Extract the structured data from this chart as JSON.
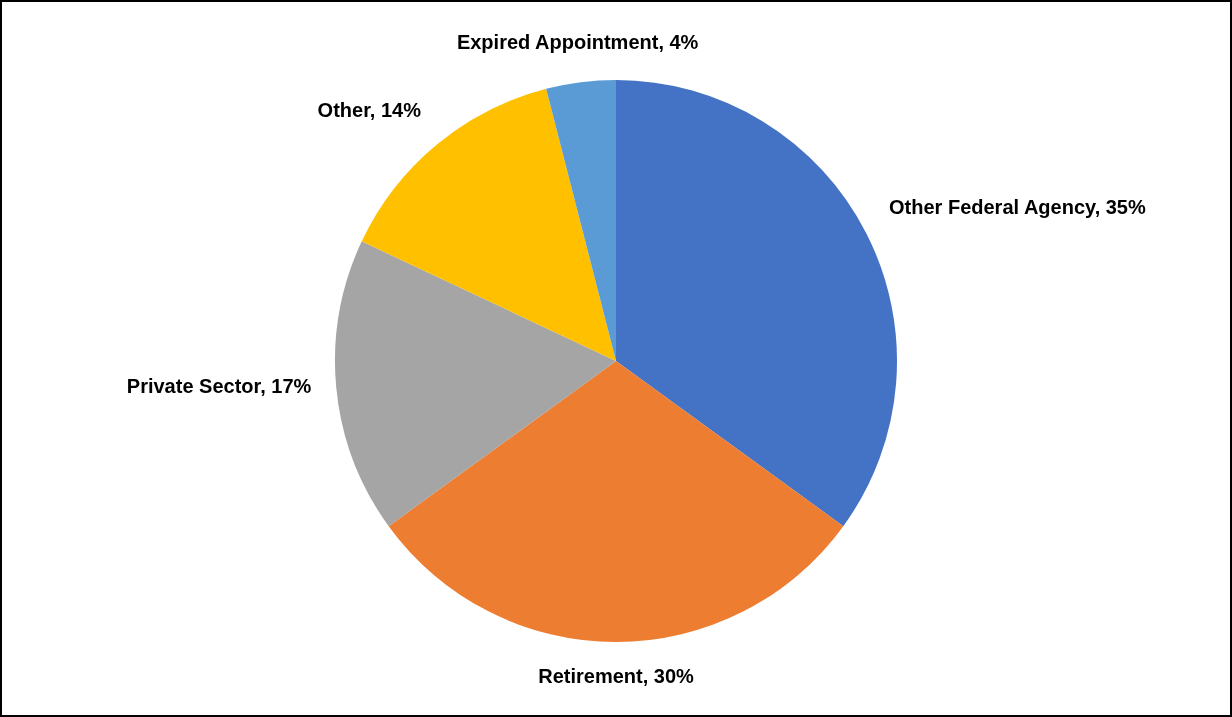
{
  "chart_data": {
    "type": "pie",
    "categories": [
      "Other Federal Agency",
      "Retirement",
      "Private Sector",
      "Other",
      "Expired Appointment"
    ],
    "values": [
      35,
      30,
      17,
      14,
      4
    ],
    "value_labels": [
      "35%",
      "30%",
      "17%",
      "14%",
      "4%"
    ],
    "colors": [
      "#4472c4",
      "#ed7d31",
      "#a5a5a5",
      "#ffc000",
      "#5b9bd5"
    ],
    "legend": false
  }
}
